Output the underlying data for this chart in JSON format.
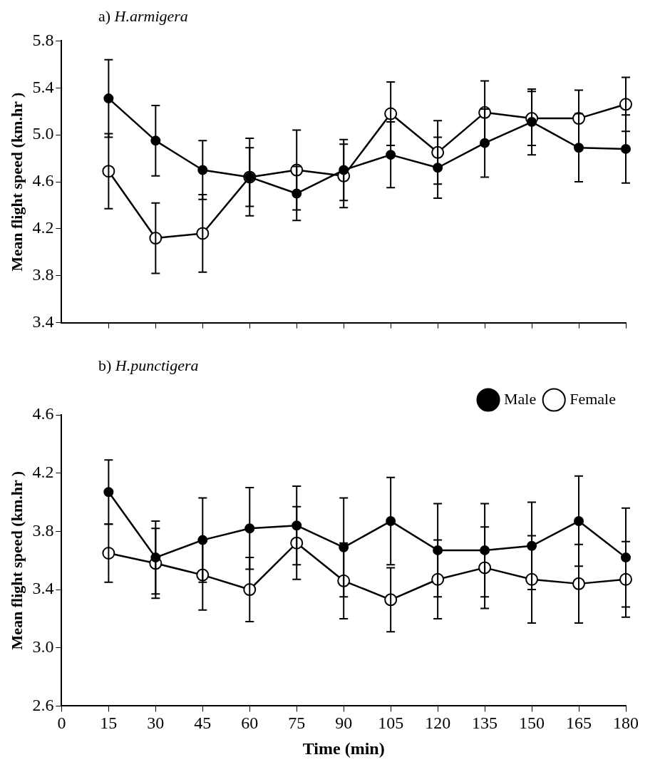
{
  "chart_data": [
    {
      "type": "line",
      "title": "a) H.armigera",
      "ylabel": "Mean flight speed (km.hr )",
      "x": [
        15,
        30,
        45,
        60,
        75,
        90,
        105,
        120,
        135,
        150,
        165,
        180
      ],
      "xlim": [
        0,
        180
      ],
      "xticks": [
        {
          "value": 15,
          "label": null
        },
        {
          "value": 30,
          "label": null
        },
        {
          "value": 45,
          "label": null
        },
        {
          "value": 60,
          "label": null
        },
        {
          "value": 75,
          "label": null
        },
        {
          "value": 90,
          "label": null
        },
        {
          "value": 105,
          "label": null
        },
        {
          "value": 120,
          "label": null
        },
        {
          "value": 135,
          "label": null
        },
        {
          "value": 150,
          "label": null
        },
        {
          "value": 165,
          "label": null
        },
        {
          "value": 180,
          "label": null
        }
      ],
      "ylim": [
        3.4,
        5.8
      ],
      "yticks": [
        3.4,
        3.8,
        4.2,
        4.6,
        {
          "value": 5,
          "label": "5.0"
        },
        5.4,
        5.8
      ],
      "tick_labels": "y",
      "marker": "circle",
      "grid": false,
      "series": [
        {
          "color": "#000000",
          "values": [
            5.31,
            4.95,
            4.7,
            4.64,
            4.5,
            4.7,
            4.83,
            4.72,
            4.93,
            5.11,
            4.89,
            4.88
          ],
          "errors": [
            0.33,
            0.3,
            0.25,
            0.25,
            0.23,
            0.26,
            0.28,
            0.26,
            0.29,
            0.28,
            0.29,
            0.29
          ]
        },
        {
          "color": "#000000",
          "values": [
            4.69,
            4.12,
            4.16,
            4.64,
            4.7,
            4.65,
            5.18,
            4.85,
            5.19,
            5.14,
            5.14,
            5.26
          ],
          "errors": [
            0.32,
            0.3,
            0.33,
            0.33,
            0.34,
            0.27,
            0.27,
            0.27,
            0.27,
            0.23,
            0.24,
            0.23
          ]
        }
      ]
    },
    {
      "type": "line",
      "title": "b) H.punctigera",
      "ylabel": "Mean flight speed (km.hr )",
      "xlabel": "Time (min)",
      "x": [
        15,
        30,
        45,
        60,
        75,
        90,
        105,
        120,
        135,
        150,
        165,
        180
      ],
      "xlim": [
        0,
        180
      ],
      "xticks": [
        0,
        15,
        30,
        45,
        60,
        75,
        90,
        105,
        120,
        135,
        150,
        165,
        180
      ],
      "ylim": [
        2.6,
        4.6
      ],
      "yticks": [
        2.6,
        {
          "value": 3,
          "label": "3.0"
        },
        3.4,
        3.8,
        4.2,
        4.6
      ],
      "marker": "circle",
      "grid": false,
      "legend": "top right",
      "series": [
        {
          "name": "Male",
          "color": "#000000",
          "values": [
            4.07,
            3.62,
            3.74,
            3.82,
            3.84,
            3.69,
            3.87,
            3.67,
            3.67,
            3.7,
            3.87,
            3.62
          ],
          "errors": [
            0.22,
            0.25,
            0.29,
            0.28,
            0.27,
            0.34,
            0.3,
            0.32,
            0.32,
            0.3,
            0.31,
            0.34
          ]
        },
        {
          "name": "Female",
          "color": "#000000",
          "values": [
            3.65,
            3.58,
            3.5,
            3.4,
            3.72,
            3.46,
            3.33,
            3.47,
            3.55,
            3.47,
            3.44,
            3.47
          ],
          "errors": [
            0.2,
            0.24,
            0.24,
            0.22,
            0.25,
            0.26,
            0.22,
            0.27,
            0.28,
            0.3,
            0.27,
            0.26
          ]
        }
      ]
    }
  ]
}
